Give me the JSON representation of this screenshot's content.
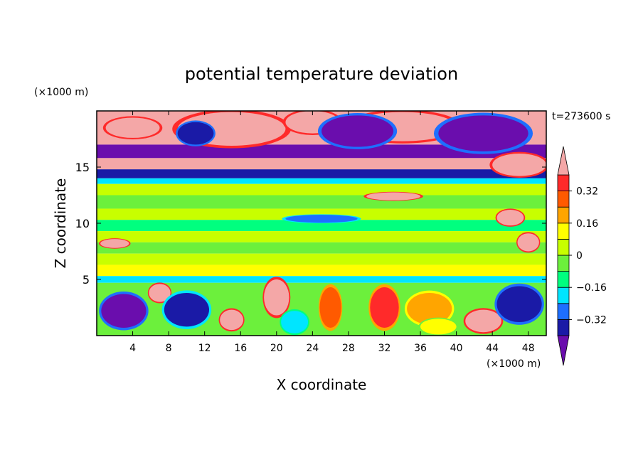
{
  "chart_data": {
    "type": "heatmap",
    "title": "potential temperature deviation",
    "xlabel": "X coordinate",
    "ylabel": "Z coordinate",
    "x_unit": "(×1000 m)",
    "y_unit": "(×1000 m)",
    "time_label": "t=273600 s",
    "xlim": [
      0,
      50
    ],
    "ylim": [
      0,
      20
    ],
    "x_ticks": [
      4,
      8,
      12,
      16,
      20,
      24,
      28,
      32,
      36,
      40,
      44,
      48
    ],
    "y_ticks": [
      5,
      10,
      15
    ],
    "colorbar": {
      "levels": [
        -0.4,
        -0.32,
        -0.24,
        -0.16,
        -0.08,
        0,
        0.08,
        0.16,
        0.24,
        0.32,
        0.4
      ],
      "tick_labels": [
        "0.32",
        "0.16",
        "0",
        "−0.16",
        "−0.32"
      ],
      "tick_values": [
        0.32,
        0.16,
        0,
        -0.16,
        -0.32
      ],
      "colors": [
        "#6a0dad",
        "#1a1aa6",
        "#1e6fff",
        "#00e5ff",
        "#00ff7f",
        "#6cf03c",
        "#c8ff00",
        "#ffff00",
        "#ffa500",
        "#ff5a00",
        "#ff2a2a",
        "#f4a7a7"
      ],
      "extend": "both"
    },
    "bands": [
      {
        "z": [
          17.0,
          20.0
        ],
        "value": 0.45
      },
      {
        "z": [
          15.8,
          17.0
        ],
        "value": -0.42
      },
      {
        "z": [
          14.8,
          15.8
        ],
        "value": 0.42
      },
      {
        "z": [
          14.0,
          14.8
        ],
        "value": -0.36
      },
      {
        "z": [
          13.5,
          14.0
        ],
        "value": -0.18
      },
      {
        "z": [
          12.5,
          13.5
        ],
        "value": 0.02
      },
      {
        "z": [
          11.3,
          12.5
        ],
        "value": -0.06
      },
      {
        "z": [
          10.3,
          11.3
        ],
        "value": 0.03
      },
      {
        "z": [
          9.3,
          10.3
        ],
        "value": -0.12
      },
      {
        "z": [
          8.3,
          9.3
        ],
        "value": 0.05
      },
      {
        "z": [
          7.3,
          8.3
        ],
        "value": -0.07
      },
      {
        "z": [
          6.3,
          7.3
        ],
        "value": 0.06
      },
      {
        "z": [
          5.3,
          6.3
        ],
        "value": 0.1
      },
      {
        "z": [
          4.7,
          5.3
        ],
        "value": -0.2
      },
      {
        "z": [
          0.0,
          4.7
        ],
        "value": -0.08
      }
    ],
    "blobs": [
      {
        "x": 4,
        "z": 18.5,
        "rx": 3.0,
        "rz": 0.9,
        "value": 0.45
      },
      {
        "x": 15,
        "z": 18.4,
        "rx": 6.0,
        "rz": 1.5,
        "value": 0.45
      },
      {
        "x": 24,
        "z": 19.0,
        "rx": 3.0,
        "rz": 1.0,
        "value": 0.45
      },
      {
        "x": 34,
        "z": 18.6,
        "rx": 6.0,
        "rz": 1.3,
        "value": 0.45
      },
      {
        "x": 47,
        "z": 15.2,
        "rx": 3.0,
        "rz": 1.0,
        "value": 0.45
      },
      {
        "x": 11,
        "z": 18.0,
        "rx": 2.0,
        "rz": 1.0,
        "value": -0.4
      },
      {
        "x": 29,
        "z": 18.2,
        "rx": 4.0,
        "rz": 1.4,
        "value": -0.42
      },
      {
        "x": 43,
        "z": 18.0,
        "rx": 5.0,
        "rz": 1.6,
        "value": -0.42
      },
      {
        "x": 33,
        "z": 12.4,
        "rx": 3.0,
        "rz": 0.35,
        "value": 0.45
      },
      {
        "x": 46,
        "z": 10.5,
        "rx": 1.5,
        "rz": 0.7,
        "value": 0.45
      },
      {
        "x": 48,
        "z": 8.3,
        "rx": 1.2,
        "rz": 0.8,
        "value": 0.45
      },
      {
        "x": 2,
        "z": 8.2,
        "rx": 1.6,
        "rz": 0.4,
        "value": 0.45
      },
      {
        "x": 25,
        "z": 10.4,
        "rx": 4.0,
        "rz": 0.35,
        "value": -0.3
      },
      {
        "x": 20,
        "z": 3.4,
        "rx": 1.4,
        "rz": 1.6,
        "value": 0.45
      },
      {
        "x": 7,
        "z": 3.8,
        "rx": 1.2,
        "rz": 0.8,
        "value": 0.45
      },
      {
        "x": 15,
        "z": 1.4,
        "rx": 1.3,
        "rz": 0.9,
        "value": 0.45
      },
      {
        "x": 43,
        "z": 1.3,
        "rx": 2.0,
        "rz": 1.0,
        "value": 0.45
      },
      {
        "x": 26,
        "z": 2.5,
        "rx": 1.2,
        "rz": 1.8,
        "value": 0.3
      },
      {
        "x": 32,
        "z": 2.5,
        "rx": 1.6,
        "rz": 1.8,
        "value": 0.34
      },
      {
        "x": 37,
        "z": 2.4,
        "rx": 2.5,
        "rz": 1.4,
        "value": 0.22
      },
      {
        "x": 3,
        "z": 2.2,
        "rx": 2.5,
        "rz": 1.5,
        "value": -0.42
      },
      {
        "x": 10,
        "z": 2.3,
        "rx": 2.5,
        "rz": 1.5,
        "value": -0.36
      },
      {
        "x": 47,
        "z": 2.8,
        "rx": 2.5,
        "rz": 1.6,
        "value": -0.4
      },
      {
        "x": 22,
        "z": 1.2,
        "rx": 1.5,
        "rz": 1.0,
        "value": -0.2
      },
      {
        "x": 38,
        "z": 0.8,
        "rx": 2.0,
        "rz": 0.7,
        "value": 0.08
      }
    ]
  }
}
